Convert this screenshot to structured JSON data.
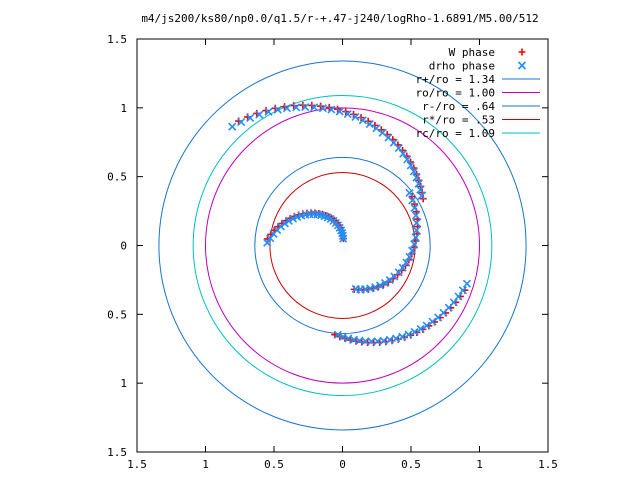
{
  "chart_data": {
    "type": "scatter",
    "title": "m4/js200/ks80/np0.0/q1.5/r-+.47-j240/logRho-1.6891/M5.00/512",
    "xlabel": "",
    "ylabel": "",
    "xlim": [
      -1.5,
      1.5
    ],
    "ylim": [
      -1.5,
      1.5
    ],
    "grid": false,
    "legend_position": "top-right",
    "x_ticks": [
      -1.5,
      -1,
      -0.5,
      0,
      0.5,
      1,
      1.5
    ],
    "y_ticks": [
      -1.5,
      -1,
      -0.5,
      0,
      0.5,
      1,
      1.5
    ],
    "x_tick_labels": [
      "1.5",
      "1",
      "0.5",
      "0",
      "0.5",
      "1",
      "1.5"
    ],
    "y_tick_labels": [
      "1.5",
      "1",
      "0.5",
      "0",
      "0.5",
      "1",
      "1.5"
    ],
    "series": [
      {
        "name": "W phase",
        "kind": "points",
        "marker": "+",
        "color": "#ff0000",
        "arms": [
          {
            "r_start": 0.05,
            "r_end": 0.55,
            "phi_start_deg": 82,
            "phi_end_deg": 175,
            "n": 26
          },
          {
            "r_start": 0.33,
            "r_end": 0.62,
            "phi_start_deg": 285,
            "phi_end_deg": 395,
            "n": 22
          },
          {
            "r_start": 0.65,
            "r_end": 0.95,
            "phi_start_deg": 265,
            "phi_end_deg": 340,
            "n": 24
          },
          {
            "r_start": 0.68,
            "r_end": 1.18,
            "phi_start_deg": 30,
            "phi_end_deg": 130,
            "n": 30
          }
        ]
      },
      {
        "name": "drho phase",
        "kind": "points",
        "marker": "x",
        "color": "#1e90ff",
        "arms": [
          {
            "r_start": 0.05,
            "r_end": 0.55,
            "phi_start_deg": 84,
            "phi_end_deg": 178,
            "n": 26
          },
          {
            "r_start": 0.33,
            "r_end": 0.62,
            "phi_start_deg": 287,
            "phi_end_deg": 398,
            "n": 22
          },
          {
            "r_start": 0.65,
            "r_end": 0.95,
            "phi_start_deg": 267,
            "phi_end_deg": 343,
            "n": 24
          },
          {
            "r_start": 0.68,
            "r_end": 1.18,
            "phi_start_deg": 32,
            "phi_end_deg": 133,
            "n": 30
          }
        ]
      },
      {
        "name": "r+/ro = 1.34",
        "kind": "circle",
        "r": 1.34,
        "color": "#1874cd"
      },
      {
        "name": "ro/ro = 1.00",
        "kind": "circle",
        "r": 1.0,
        "color": "#c000c0"
      },
      {
        "name": "r-/ro = .64",
        "kind": "circle",
        "r": 0.64,
        "color": "#1874cd"
      },
      {
        "name": "r*/ro = .53",
        "kind": "circle",
        "r": 0.53,
        "color": "#cc0000"
      },
      {
        "name": "rc/ro = 1.09",
        "kind": "circle",
        "r": 1.09,
        "color": "#00c0c0"
      }
    ]
  }
}
